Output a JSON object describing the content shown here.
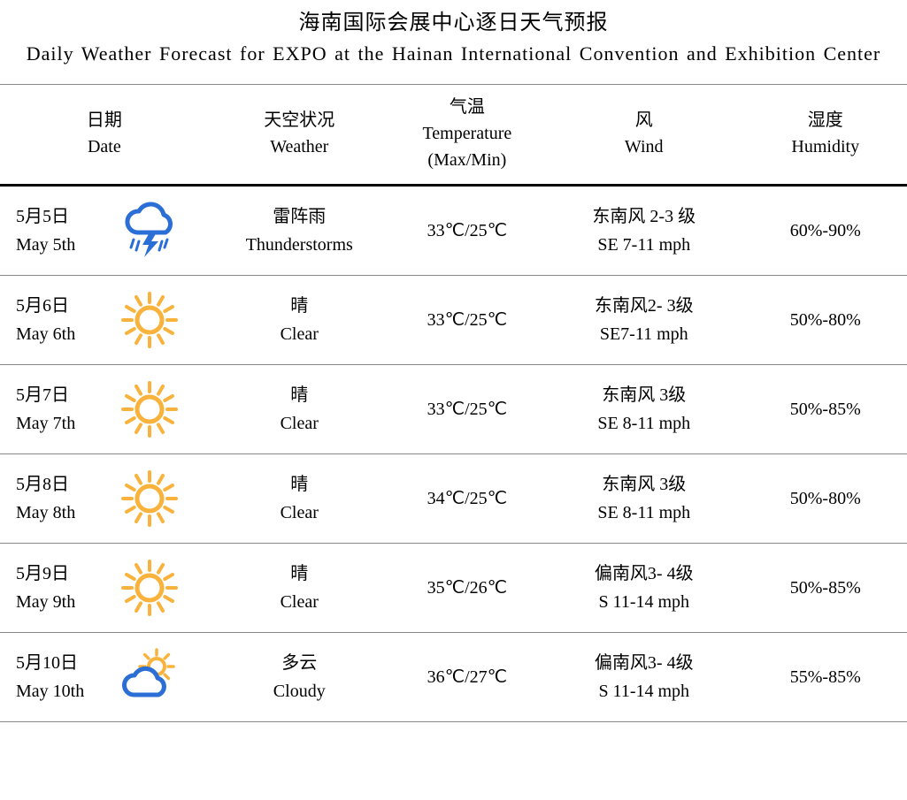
{
  "title": {
    "cn": "海南国际会展中心逐日天气预报",
    "en": "Daily Weather Forecast for EXPO at the Hainan International Convention and Exhibition Center"
  },
  "columns": {
    "date": {
      "cn": "日期",
      "en": "Date"
    },
    "weather": {
      "cn": "天空状况",
      "en": "Weather"
    },
    "temp": {
      "cn": "气温",
      "en": "Temperature",
      "unit": "(Max/Min)"
    },
    "wind": {
      "cn": "风",
      "en": "Wind"
    },
    "humidity": {
      "cn": "湿度",
      "en": "Humidity"
    }
  },
  "icons": {
    "thunderstorm_color": "#2b6fd6",
    "sun_color": "#f9b33c",
    "cloud_stroke": "#2b6fd6",
    "cloud_fill": "#ffffff"
  },
  "rows": [
    {
      "date_cn": "5月5日",
      "date_en": "May 5th",
      "icon": "thunderstorm",
      "weather_cn": "雷阵雨",
      "weather_en": "Thunderstorms",
      "temp": "33℃/25℃",
      "wind_cn": "东南风 2-3 级",
      "wind_en": "SE 7-11 mph",
      "humidity": "60%-90%"
    },
    {
      "date_cn": "5月6日",
      "date_en": "May 6th",
      "icon": "sunny",
      "weather_cn": "晴",
      "weather_en": "Clear",
      "temp": "33℃/25℃",
      "wind_cn": "东南风2- 3级",
      "wind_en": "SE7-11 mph",
      "humidity": "50%-80%"
    },
    {
      "date_cn": "5月7日",
      "date_en": "May 7th",
      "icon": "sunny",
      "weather_cn": "晴",
      "weather_en": "Clear",
      "temp": "33℃/25℃",
      "wind_cn": "东南风 3级",
      "wind_en": "SE 8-11 mph",
      "humidity": "50%-85%"
    },
    {
      "date_cn": "5月8日",
      "date_en": "May 8th",
      "icon": "sunny",
      "weather_cn": "晴",
      "weather_en": "Clear",
      "temp": "34℃/25℃",
      "wind_cn": "东南风 3级",
      "wind_en": "SE 8-11 mph",
      "humidity": "50%-80%"
    },
    {
      "date_cn": "5月9日",
      "date_en": "May 9th",
      "icon": "sunny",
      "weather_cn": "晴",
      "weather_en": "Clear",
      "temp": "35℃/26℃",
      "wind_cn": "偏南风3- 4级",
      "wind_en": "S 11-14 mph",
      "humidity": "50%-85%"
    },
    {
      "date_cn": "5月10日",
      "date_en": "May 10th",
      "icon": "partly_cloudy",
      "weather_cn": "多云",
      "weather_en": "Cloudy",
      "temp": "36℃/27℃",
      "wind_cn": "偏南风3- 4级",
      "wind_en": "S 11-14 mph",
      "humidity": "55%-85%"
    }
  ]
}
